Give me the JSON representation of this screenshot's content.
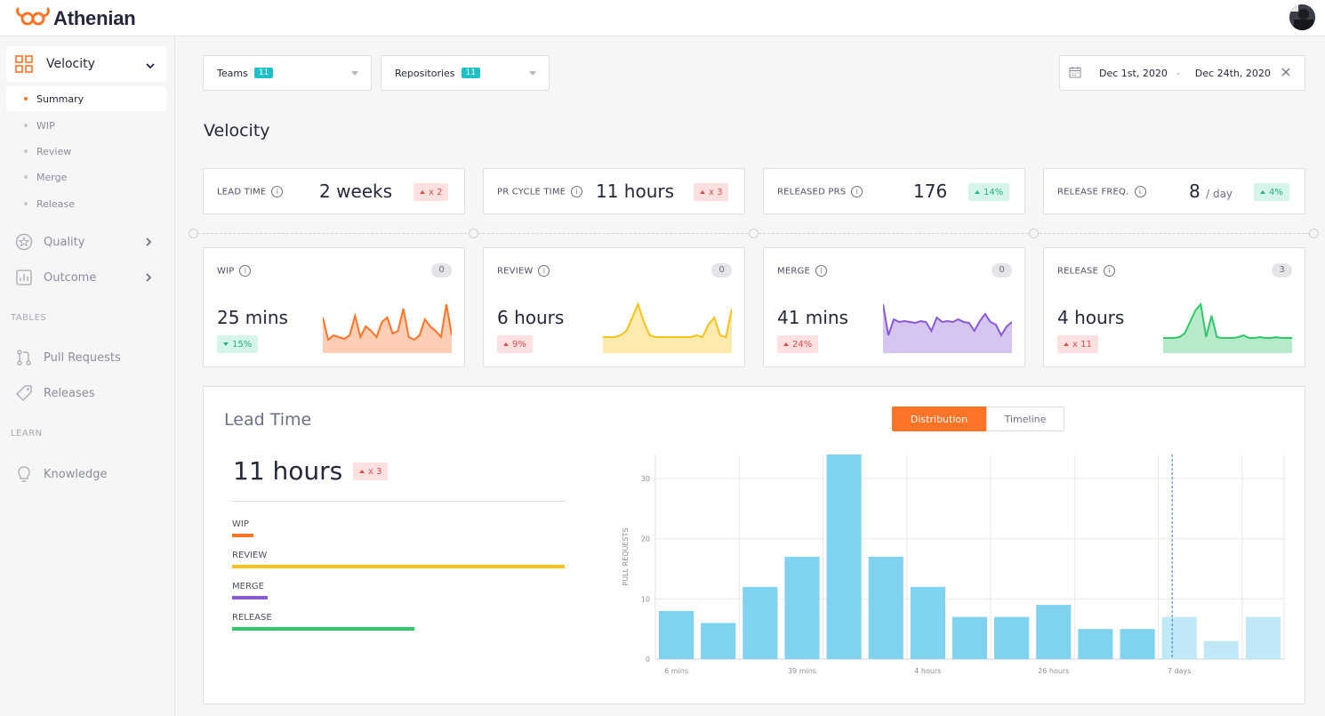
{
  "app": {
    "name": "Athenian"
  },
  "colors": {
    "accent": "#ff7427",
    "teal": "#1ec1c8",
    "wip": "#ff7427",
    "review": "#f7c21a",
    "merge": "#8a57d8",
    "release": "#2fc768",
    "bar": "#7fd3ef",
    "bar_light": "#c0e9f8"
  },
  "sidebar": {
    "velocity": {
      "label": "Velocity",
      "icon": "grid-icon",
      "items": [
        "Summary",
        "WIP",
        "Review",
        "Merge",
        "Release"
      ]
    },
    "quality": {
      "label": "Quality",
      "icon": "star-icon"
    },
    "outcome": {
      "label": "Outcome",
      "icon": "bar-chart-icon"
    },
    "tables_label": "TABLES",
    "pull_requests": "Pull Requests",
    "releases": "Releases",
    "learn_label": "LEARN",
    "knowledge": "Knowledge"
  },
  "filters": {
    "teams": {
      "label": "Teams",
      "count": "11"
    },
    "repositories": {
      "label": "Repositories",
      "count": "11"
    },
    "date_from": "Dec 1st, 2020",
    "date_sep": "-",
    "date_to": "Dec 24th, 2020"
  },
  "page_title": "Velocity",
  "kpis": [
    {
      "label": "LEAD TIME",
      "value": "2 weeks",
      "sub": "",
      "change": "x 2",
      "trend": "red"
    },
    {
      "label": "PR CYCLE TIME",
      "value": "11 hours",
      "sub": "",
      "change": "x 3",
      "trend": "red"
    },
    {
      "label": "RELEASED PRS",
      "value": "176",
      "sub": "",
      "change": "14%",
      "trend": "green"
    },
    {
      "label": "RELEASE FREQ.",
      "value": "8",
      "sub": "/ day",
      "change": "4%",
      "trend": "green"
    }
  ],
  "stages": [
    {
      "label": "WIP",
      "count": "0",
      "value": "25 mins",
      "change": "15%",
      "trend": "green-down",
      "color": "#ff7427",
      "spark": [
        20,
        45,
        40,
        42,
        44,
        40,
        18,
        42,
        30,
        35,
        42,
        25,
        20,
        38,
        35,
        10,
        42,
        45,
        40,
        22,
        30,
        35,
        42,
        5,
        40
      ]
    },
    {
      "label": "REVIEW",
      "count": "0",
      "value": "6 hours",
      "change": "9%",
      "trend": "red-up",
      "color": "#f7c21a",
      "spark": [
        42,
        42,
        42,
        40,
        35,
        20,
        5,
        25,
        40,
        42,
        42,
        42,
        42,
        42,
        42,
        42,
        40,
        42,
        28,
        20,
        40,
        42,
        10
      ]
    },
    {
      "label": "MERGE",
      "count": "0",
      "value": "41 mins",
      "change": "24%",
      "trend": "red-up",
      "color": "#8a57d8",
      "spark": [
        5,
        40,
        22,
        25,
        24,
        25,
        26,
        24,
        25,
        35,
        20,
        25,
        24,
        25,
        22,
        25,
        26,
        35,
        24,
        16,
        25,
        28,
        40,
        30,
        25
      ]
    },
    {
      "label": "RELEASE",
      "count": "3",
      "value": "4 hours",
      "change": "x 11",
      "trend": "red-up",
      "color": "#2fc768",
      "spark": [
        43,
        43,
        43,
        42,
        38,
        25,
        12,
        5,
        42,
        18,
        42,
        43,
        43,
        43,
        42,
        40,
        43,
        43,
        42,
        43,
        43,
        42,
        43,
        43,
        43
      ]
    }
  ],
  "lead_time": {
    "title": "Lead Time",
    "value": "11 hours",
    "change": "x 3",
    "tabs": [
      "Distribution",
      "Timeline"
    ],
    "breakdown": [
      {
        "label": "WIP",
        "fraction": 0.065,
        "color": "#ff7427"
      },
      {
        "label": "REVIEW",
        "fraction": 1.0,
        "color": "#f7c21a"
      },
      {
        "label": "MERGE",
        "fraction": 0.107,
        "color": "#8a57d8"
      },
      {
        "label": "RELEASE",
        "fraction": 0.547,
        "color": "#2fc768"
      }
    ]
  },
  "chart_data": {
    "type": "bar",
    "ylabel": "PULL REQUESTS",
    "ylim": [
      0,
      34
    ],
    "yticks": [
      0,
      10,
      20,
      30
    ],
    "xtick_labels": [
      {
        "label": "6 mins",
        "bin": 0
      },
      {
        "label": "39 mins",
        "bin": 3
      },
      {
        "label": "4 hours",
        "bin": 6
      },
      {
        "label": "26 hours",
        "bin": 9
      },
      {
        "label": "7 days",
        "bin": 12
      }
    ],
    "values": [
      8,
      6,
      12,
      17,
      34,
      17,
      12,
      7,
      7,
      9,
      5,
      5,
      7,
      3,
      7
    ],
    "highlight_from_bin": 12,
    "threshold_bin": 12,
    "grid": true
  }
}
